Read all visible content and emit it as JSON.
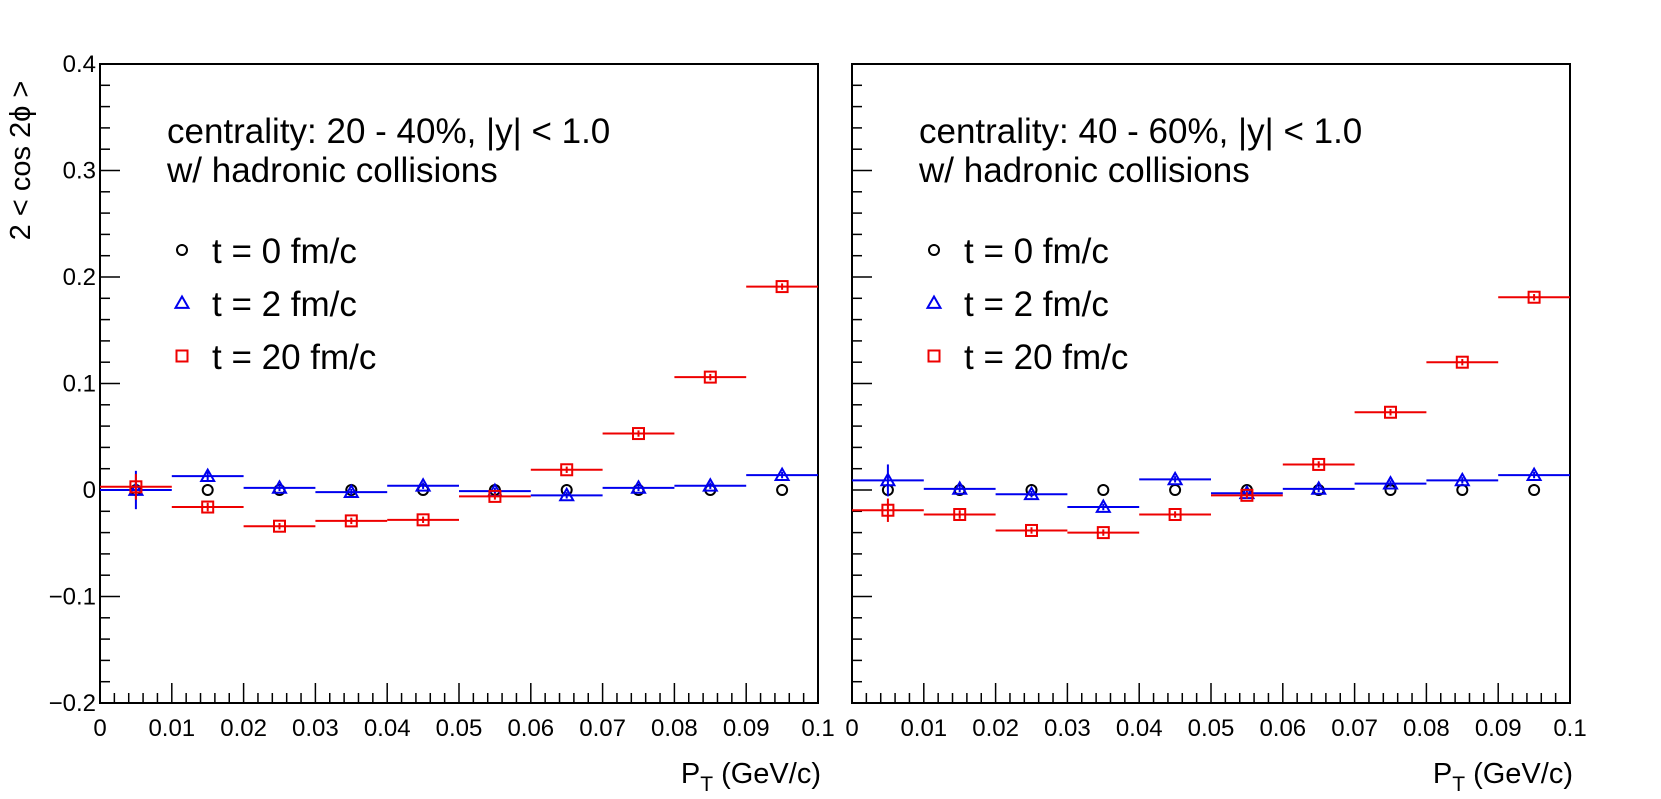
{
  "chart_data": [
    {
      "type": "scatter",
      "panel": "left",
      "annotation": [
        "centrality: 20 - 40%, |y| < 1.0",
        "w/ hadronic collisions"
      ],
      "xlabel_main": "P",
      "xlabel_sub": "T",
      "xlabel_unit": " (GeV/c)",
      "ylabel": "2 < cos 2ϕ >",
      "xlim": [
        0,
        0.1
      ],
      "ylim": [
        -0.2,
        0.4
      ],
      "x_ticks": [
        "0",
        "0.01",
        "0.02",
        "0.03",
        "0.04",
        "0.05",
        "0.06",
        "0.07",
        "0.08",
        "0.09",
        "0.1"
      ],
      "y_ticks": [
        "−0.2",
        "−0.1",
        "0",
        "0.1",
        "0.2",
        "0.3",
        "0.4"
      ],
      "x_tick_values": [
        0,
        0.01,
        0.02,
        0.03,
        0.04,
        0.05,
        0.06,
        0.07,
        0.08,
        0.09,
        0.1
      ],
      "y_tick_values": [
        -0.2,
        -0.1,
        0,
        0.1,
        0.2,
        0.3,
        0.4
      ],
      "bin_half_width": 0.005,
      "series": [
        {
          "name": "t = 0 fm/c",
          "marker": "circle",
          "color": "#000000",
          "x": [
            0.005,
            0.015,
            0.025,
            0.035,
            0.045,
            0.055,
            0.065,
            0.075,
            0.085,
            0.095
          ],
          "y": [
            0.0,
            0.0,
            0.0,
            0.0,
            0.0,
            0.0,
            0.0,
            0.0,
            0.0,
            0.0
          ],
          "yerr": [
            0,
            0,
            0,
            0,
            0,
            0,
            0,
            0,
            0,
            0
          ],
          "xbars": false
        },
        {
          "name": "t = 2 fm/c",
          "marker": "triangle",
          "color": "#0000ee",
          "x": [
            0.005,
            0.015,
            0.025,
            0.035,
            0.045,
            0.055,
            0.065,
            0.075,
            0.085,
            0.095
          ],
          "y": [
            0.0,
            0.013,
            0.002,
            -0.002,
            0.004,
            -0.001,
            -0.005,
            0.002,
            0.004,
            0.014
          ],
          "yerr": [
            0.018,
            0.004,
            0.003,
            0.003,
            0.003,
            0.003,
            0.003,
            0.003,
            0.003,
            0.003
          ],
          "xbars": true
        },
        {
          "name": "t = 20 fm/c",
          "marker": "square",
          "color": "#ee0000",
          "x": [
            0.005,
            0.015,
            0.025,
            0.035,
            0.045,
            0.055,
            0.065,
            0.075,
            0.085,
            0.095
          ],
          "y": [
            0.003,
            -0.016,
            -0.034,
            -0.029,
            -0.028,
            -0.006,
            0.019,
            0.053,
            0.106,
            0.191
          ],
          "yerr": [
            0.012,
            0.004,
            0.003,
            0.003,
            0.003,
            0.003,
            0.003,
            0.003,
            0.003,
            0.003
          ],
          "xbars": true
        }
      ]
    },
    {
      "type": "scatter",
      "panel": "right",
      "annotation": [
        "centrality: 40 - 60%, |y| < 1.0",
        "w/ hadronic collisions"
      ],
      "xlabel_main": "P",
      "xlabel_sub": "T",
      "xlabel_unit": " (GeV/c)",
      "ylabel": "",
      "xlim": [
        0,
        0.1
      ],
      "ylim": [
        -0.2,
        0.4
      ],
      "x_ticks": [
        "0",
        "0.01",
        "0.02",
        "0.03",
        "0.04",
        "0.05",
        "0.06",
        "0.07",
        "0.08",
        "0.09",
        "0.1"
      ],
      "y_ticks": [],
      "x_tick_values": [
        0,
        0.01,
        0.02,
        0.03,
        0.04,
        0.05,
        0.06,
        0.07,
        0.08,
        0.09,
        0.1
      ],
      "y_tick_values": [],
      "bin_half_width": 0.005,
      "series": [
        {
          "name": "t = 0 fm/c",
          "marker": "circle",
          "color": "#000000",
          "x": [
            0.005,
            0.015,
            0.025,
            0.035,
            0.045,
            0.055,
            0.065,
            0.075,
            0.085,
            0.095
          ],
          "y": [
            0.0,
            0.0,
            0.0,
            0.0,
            0.0,
            0.0,
            0.0,
            0.0,
            0.0,
            0.0
          ],
          "yerr": [
            0,
            0,
            0,
            0,
            0,
            0,
            0,
            0,
            0,
            0
          ],
          "xbars": false
        },
        {
          "name": "t = 2 fm/c",
          "marker": "triangle",
          "color": "#0000ee",
          "x": [
            0.005,
            0.015,
            0.025,
            0.035,
            0.045,
            0.055,
            0.065,
            0.075,
            0.085,
            0.095
          ],
          "y": [
            0.009,
            0.001,
            -0.004,
            -0.016,
            0.01,
            -0.003,
            0.001,
            0.006,
            0.009,
            0.014
          ],
          "yerr": [
            0.015,
            0.003,
            0.003,
            0.003,
            0.003,
            0.003,
            0.003,
            0.003,
            0.003,
            0.003
          ],
          "xbars": true
        },
        {
          "name": "t = 20 fm/c",
          "marker": "square",
          "color": "#ee0000",
          "x": [
            0.005,
            0.015,
            0.025,
            0.035,
            0.045,
            0.055,
            0.065,
            0.075,
            0.085,
            0.095
          ],
          "y": [
            -0.019,
            -0.023,
            -0.038,
            -0.04,
            -0.023,
            -0.005,
            0.024,
            0.073,
            0.12,
            0.181
          ],
          "yerr": [
            0.011,
            0.004,
            0.003,
            0.003,
            0.003,
            0.003,
            0.003,
            0.003,
            0.003,
            0.003
          ],
          "xbars": true
        }
      ]
    }
  ]
}
